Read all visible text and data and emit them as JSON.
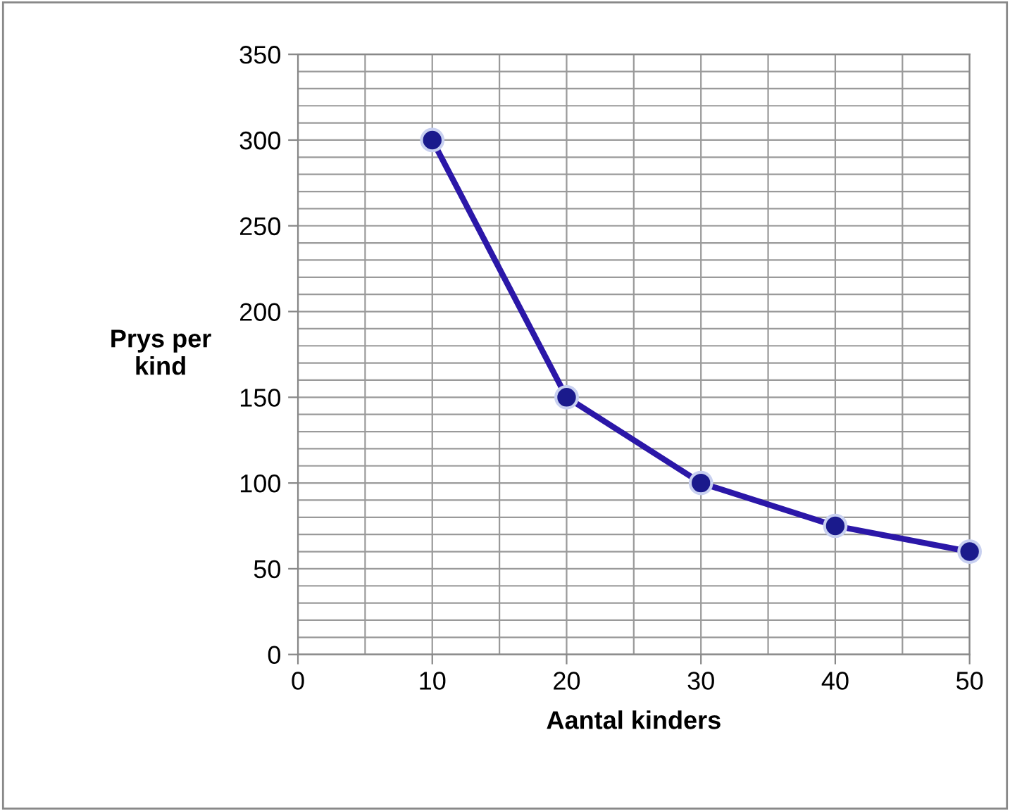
{
  "chart_data": {
    "type": "line",
    "xlabel": "Aantal kinders",
    "ylabel": "Prys per\nkind",
    "x": [
      10,
      20,
      30,
      40,
      50
    ],
    "series": [
      {
        "color": "#2b17a8",
        "values": [
          300,
          150,
          100,
          75,
          60
        ]
      }
    ],
    "xlim": [
      0,
      50
    ],
    "xticks": [
      0,
      10,
      20,
      30,
      40,
      50
    ],
    "ylim": [
      0,
      350
    ],
    "yticks": [
      0,
      50,
      100,
      150,
      200,
      250,
      300,
      350
    ],
    "grid": true,
    "marker": "circle",
    "line_style": "solid"
  }
}
